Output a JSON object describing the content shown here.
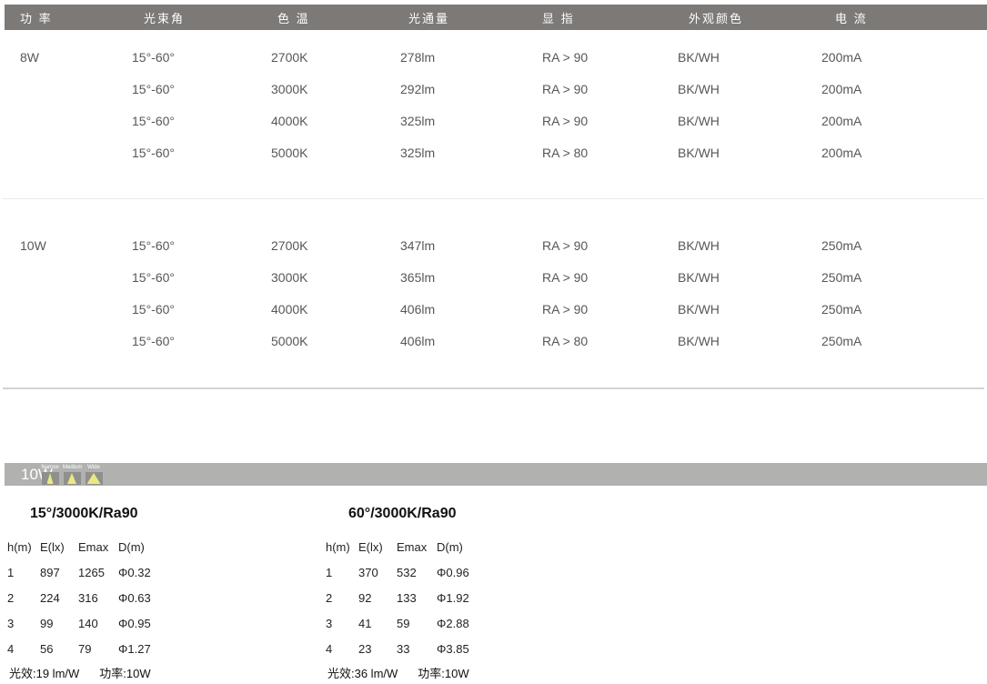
{
  "spec_table": {
    "headers": [
      "功 率",
      "光束角",
      "色 温",
      "光通量",
      "显 指",
      "外观颜色",
      "电 流"
    ],
    "groups": [
      {
        "power": "8W",
        "rows": [
          [
            "15°-60°",
            "2700K",
            "278lm",
            "RA > 90",
            "BK/WH",
            "200mA"
          ],
          [
            "15°-60°",
            "3000K",
            "292lm",
            "RA > 90",
            "BK/WH",
            "200mA"
          ],
          [
            "15°-60°",
            "4000K",
            "325lm",
            "RA > 90",
            "BK/WH",
            "200mA"
          ],
          [
            "15°-60°",
            "5000K",
            "325lm",
            "RA > 80",
            "BK/WH",
            "200mA"
          ]
        ]
      },
      {
        "power": "10W",
        "rows": [
          [
            "15°-60°",
            "2700K",
            "347lm",
            "RA > 90",
            "BK/WH",
            "250mA"
          ],
          [
            "15°-60°",
            "3000K",
            "365lm",
            "RA > 90",
            "BK/WH",
            "250mA"
          ],
          [
            "15°-60°",
            "4000K",
            "406lm",
            "RA > 90",
            "BK/WH",
            "250mA"
          ],
          [
            "15°-60°",
            "5000K",
            "406lm",
            "RA > 80",
            "BK/WH",
            "250mA"
          ]
        ]
      }
    ]
  },
  "photometric": {
    "bar_label": "10W",
    "beam_icons": [
      {
        "label": "Narrow",
        "type": "narrow"
      },
      {
        "label": "Medium",
        "type": "medium"
      },
      {
        "label": "Wide",
        "type": "wide"
      }
    ],
    "tables": [
      {
        "title": "15°/3000K/Ra90",
        "headers": [
          "h(m)",
          "E(lx)",
          "Emax",
          "D(m)"
        ],
        "rows": [
          [
            "1",
            "897",
            "1265",
            "Φ0.32"
          ],
          [
            "2",
            "224",
            "316",
            "Φ0.63"
          ],
          [
            "3",
            "99",
            "140",
            "Φ0.95"
          ],
          [
            "4",
            "56",
            "79",
            "Φ1.27"
          ]
        ],
        "footer_left": "光效:19 lm/W",
        "footer_right": "功率:10W"
      },
      {
        "title": "60°/3000K/Ra90",
        "headers": [
          "h(m)",
          "E(lx)",
          "Emax",
          "D(m)"
        ],
        "rows": [
          [
            "1",
            "370",
            "532",
            "Φ0.96"
          ],
          [
            "2",
            "92",
            "133",
            "Φ1.92"
          ],
          [
            "3",
            "41",
            "59",
            "Φ2.88"
          ],
          [
            "4",
            "23",
            "33",
            "Φ3.85"
          ]
        ],
        "footer_left": "光效:36 lm/W",
        "footer_right": "功率:10W"
      }
    ]
  },
  "colors": {
    "header_bar": "#7c7977",
    "photo_bar": "#b1b1af",
    "icon_square": "#8f908e",
    "beam_yellow": "#e9e982",
    "table_text": "#56575a",
    "divider_light": "#e9e9e9",
    "divider_dark": "#d3d3d3"
  }
}
